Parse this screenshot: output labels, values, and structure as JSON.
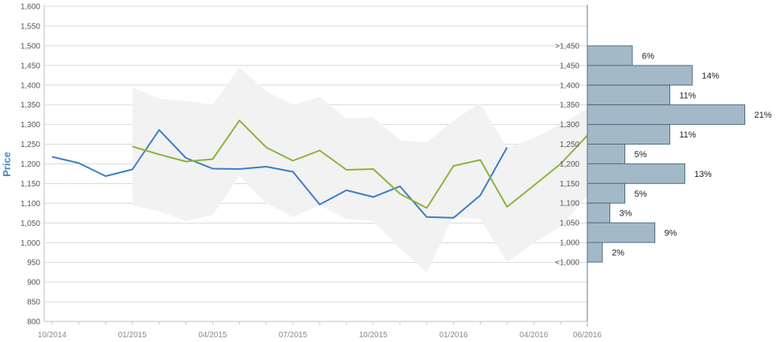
{
  "chart_data": {
    "type": "line",
    "ylabel": "Price",
    "ylim": [
      800,
      1600
    ],
    "y_ticks": [
      800,
      850,
      900,
      950,
      1000,
      1050,
      1100,
      1150,
      1200,
      1250,
      1300,
      1350,
      1400,
      1450,
      1500,
      1550,
      1600
    ],
    "y_tick_labels": [
      "800",
      "850",
      "900",
      "950",
      "1,000",
      "1,050",
      "1,100",
      "1,150",
      "1,200",
      "1,250",
      "1,300",
      "1,350",
      "1,400",
      "1,450",
      "1,500",
      "1,550",
      "1,600"
    ],
    "x_range": [
      "2014-10",
      "2016-06"
    ],
    "x_ticks": [
      "2014-10",
      "2015-01",
      "2015-04",
      "2015-07",
      "2015-10",
      "2016-01",
      "2016-04",
      "2016-06"
    ],
    "x_tick_labels": [
      "10/2014",
      "01/2015",
      "04/2015",
      "07/2015",
      "10/2015",
      "01/2016",
      "04/2016",
      "06/2016"
    ],
    "grid": true,
    "colors": {
      "blue_series": "#3a7ec4",
      "green_series": "#8db040",
      "band": "#f2f2f2",
      "histogram_fill": "#a3b9c8",
      "histogram_stroke": "#4f6e80",
      "grid": "#d9d9d9",
      "axis": "#5a7d9a"
    },
    "series": [
      {
        "x": [
          "2014-10",
          "2014-11",
          "2014-12",
          "2015-01",
          "2015-02",
          "2015-03",
          "2015-04",
          "2015-05",
          "2015-06",
          "2015-07",
          "2015-08",
          "2015-09",
          "2015-10",
          "2015-11",
          "2015-12",
          "2016-01",
          "2016-02",
          "2016-03"
        ],
        "values": [
          1218,
          1202,
          1169,
          1186,
          1286,
          1215,
          1188,
          1187,
          1193,
          1180,
          1097,
          1133,
          1116,
          1143,
          1065,
          1063,
          1120,
          1242
        ]
      },
      {
        "x": [
          "2015-01",
          "2015-02",
          "2015-03",
          "2015-04",
          "2015-05",
          "2015-06",
          "2015-07",
          "2015-08",
          "2015-09",
          "2015-10",
          "2015-11",
          "2015-12",
          "2016-01",
          "2016-02",
          "2016-03",
          "2016-04",
          "2016-05",
          "2016-06"
        ],
        "values": [
          1244,
          1224,
          1206,
          1212,
          1310,
          1242,
          1208,
          1234,
          1185,
          1187,
          1124,
          1088,
          1195,
          1210,
          1091,
          1145,
          1200,
          1272
        ]
      }
    ],
    "band": {
      "x": [
        "2015-01",
        "2015-02",
        "2015-03",
        "2015-04",
        "2015-05",
        "2015-06",
        "2015-07",
        "2015-08",
        "2015-09",
        "2015-10",
        "2015-11",
        "2015-12",
        "2016-01",
        "2016-02",
        "2016-03",
        "2016-04",
        "2016-05",
        "2016-06"
      ],
      "upper": [
        1395,
        1365,
        1360,
        1350,
        1445,
        1385,
        1350,
        1370,
        1315,
        1318,
        1260,
        1255,
        1310,
        1355,
        1240,
        1265,
        1300,
        1340
      ],
      "lower": [
        1095,
        1080,
        1055,
        1070,
        1170,
        1100,
        1065,
        1095,
        1060,
        1055,
        985,
        925,
        1065,
        1060,
        950,
        1000,
        1040,
        1120
      ]
    },
    "histogram": {
      "bins": [
        {
          "label": ">1,450",
          "percent": 6,
          "percent_label": "6%"
        },
        {
          "label": "1,450",
          "percent": 14,
          "percent_label": "14%"
        },
        {
          "label": "1,400",
          "percent": 11,
          "percent_label": "11%"
        },
        {
          "label": "1,350",
          "percent": 21,
          "percent_label": "21%"
        },
        {
          "label": "1,300",
          "percent": 11,
          "percent_label": "11%"
        },
        {
          "label": "1,250",
          "percent": 5,
          "percent_label": "5%"
        },
        {
          "label": "1,200",
          "percent": 13,
          "percent_label": "13%"
        },
        {
          "label": "1,150",
          "percent": 5,
          "percent_label": "5%"
        },
        {
          "label": "1,100",
          "percent": 3,
          "percent_label": "3%"
        },
        {
          "label": "1,050",
          "percent": 9,
          "percent_label": "9%"
        },
        {
          "label": "1,000",
          "percent": 2,
          "percent_label": "2%"
        },
        {
          "label": "<1,000",
          "percent": 0,
          "percent_label": ""
        }
      ]
    }
  }
}
